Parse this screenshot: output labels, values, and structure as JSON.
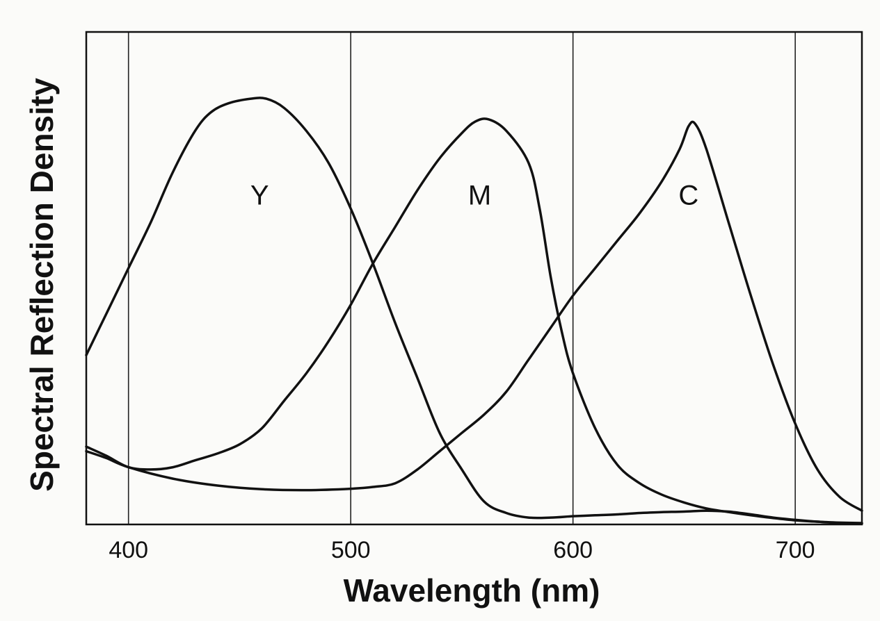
{
  "chart_data": {
    "type": "line",
    "title": "",
    "xlabel": "Wavelength (nm)",
    "ylabel": "Spectral Reflection Density",
    "xlim": [
      381,
      730
    ],
    "ylim": [
      0,
      1.0
    ],
    "grid": "vertical",
    "x_ticks": [
      400,
      500,
      600,
      700
    ],
    "x_tick_labels": [
      "400",
      "500",
      "600",
      "700"
    ],
    "y_ticks": [],
    "series": [
      {
        "name": "Y",
        "label_at": [
          459,
          0.72
        ],
        "points": [
          [
            381,
            0.37
          ],
          [
            390,
            0.46
          ],
          [
            400,
            0.56
          ],
          [
            410,
            0.66
          ],
          [
            420,
            0.77
          ],
          [
            430,
            0.86
          ],
          [
            437,
            0.9
          ],
          [
            445,
            0.92
          ],
          [
            455,
            0.93
          ],
          [
            462,
            0.93
          ],
          [
            470,
            0.91
          ],
          [
            480,
            0.86
          ],
          [
            490,
            0.79
          ],
          [
            500,
            0.69
          ],
          [
            510,
            0.57
          ],
          [
            520,
            0.44
          ],
          [
            530,
            0.32
          ],
          [
            540,
            0.2
          ],
          [
            550,
            0.12
          ],
          [
            560,
            0.05
          ],
          [
            570,
            0.025
          ],
          [
            580,
            0.015
          ],
          [
            590,
            0.015
          ],
          [
            600,
            0.018
          ],
          [
            610,
            0.02
          ],
          [
            620,
            0.022
          ],
          [
            630,
            0.025
          ],
          [
            640,
            0.027
          ],
          [
            650,
            0.028
          ],
          [
            660,
            0.03
          ],
          [
            670,
            0.028
          ],
          [
            680,
            0.022
          ],
          [
            690,
            0.015
          ],
          [
            700,
            0.01
          ],
          [
            710,
            0.006
          ],
          [
            720,
            0.003
          ],
          [
            730,
            0.002
          ]
        ]
      },
      {
        "name": "M",
        "label_at": [
          558,
          0.72
        ],
        "points": [
          [
            381,
            0.17
          ],
          [
            390,
            0.15
          ],
          [
            400,
            0.125
          ],
          [
            410,
            0.12
          ],
          [
            420,
            0.125
          ],
          [
            430,
            0.14
          ],
          [
            440,
            0.155
          ],
          [
            450,
            0.175
          ],
          [
            460,
            0.21
          ],
          [
            470,
            0.27
          ],
          [
            480,
            0.33
          ],
          [
            490,
            0.4
          ],
          [
            500,
            0.48
          ],
          [
            510,
            0.57
          ],
          [
            520,
            0.65
          ],
          [
            530,
            0.73
          ],
          [
            540,
            0.8
          ],
          [
            550,
            0.855
          ],
          [
            556,
            0.88
          ],
          [
            562,
            0.885
          ],
          [
            570,
            0.86
          ],
          [
            580,
            0.79
          ],
          [
            585,
            0.69
          ],
          [
            590,
            0.54
          ],
          [
            595,
            0.42
          ],
          [
            600,
            0.33
          ],
          [
            610,
            0.21
          ],
          [
            620,
            0.13
          ],
          [
            630,
            0.09
          ],
          [
            640,
            0.065
          ],
          [
            650,
            0.048
          ],
          [
            660,
            0.035
          ],
          [
            670,
            0.027
          ],
          [
            680,
            0.02
          ],
          [
            690,
            0.014
          ],
          [
            700,
            0.009
          ],
          [
            710,
            0.006
          ],
          [
            720,
            0.004
          ],
          [
            730,
            0.003
          ]
        ]
      },
      {
        "name": "C",
        "label_at": [
          652,
          0.72
        ],
        "points": [
          [
            381,
            0.16
          ],
          [
            390,
            0.145
          ],
          [
            400,
            0.125
          ],
          [
            420,
            0.1
          ],
          [
            440,
            0.085
          ],
          [
            460,
            0.077
          ],
          [
            480,
            0.075
          ],
          [
            500,
            0.078
          ],
          [
            510,
            0.082
          ],
          [
            520,
            0.09
          ],
          [
            530,
            0.12
          ],
          [
            540,
            0.16
          ],
          [
            550,
            0.2
          ],
          [
            560,
            0.24
          ],
          [
            570,
            0.29
          ],
          [
            580,
            0.36
          ],
          [
            590,
            0.43
          ],
          [
            600,
            0.5
          ],
          [
            610,
            0.56
          ],
          [
            620,
            0.62
          ],
          [
            630,
            0.68
          ],
          [
            640,
            0.75
          ],
          [
            648,
            0.82
          ],
          [
            652,
            0.87
          ],
          [
            655,
            0.875
          ],
          [
            660,
            0.82
          ],
          [
            670,
            0.66
          ],
          [
            680,
            0.5
          ],
          [
            690,
            0.35
          ],
          [
            700,
            0.22
          ],
          [
            710,
            0.12
          ],
          [
            720,
            0.06
          ],
          [
            730,
            0.03
          ]
        ]
      }
    ]
  }
}
